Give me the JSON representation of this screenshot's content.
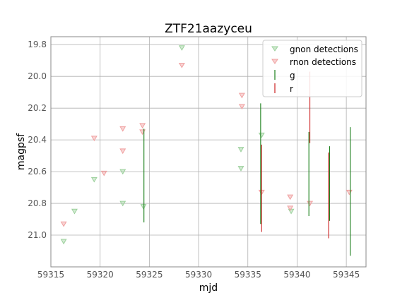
{
  "chart_data": {
    "type": "scatter",
    "title": "ZTF21aazyceu",
    "xlabel": "mjd",
    "ylabel": "magpsf",
    "xlim": [
      59315,
      59347
    ],
    "ylim": [
      21.2,
      19.75
    ],
    "y_inverted": true,
    "grid": true,
    "legend_position": "top-right",
    "xticks": [
      59315,
      59320,
      59325,
      59330,
      59335,
      59340,
      59345
    ],
    "yticks": [
      19.8,
      20.0,
      20.2,
      20.4,
      20.6,
      20.8,
      21.0
    ],
    "ytick_labels": [
      "19.8",
      "20.0",
      "20.2",
      "20.4",
      "20.6",
      "20.8",
      "21.0"
    ],
    "colors": {
      "g": "#1a7f1a",
      "r": "#cc2222",
      "gnon": "#9bd09b",
      "rnon": "#f0a0a0"
    },
    "legend": [
      "gnon detections",
      "rnon detections",
      "g",
      "r"
    ],
    "series": [
      {
        "name": "gnon detections",
        "marker": "triangle-down",
        "points": [
          {
            "x": 59316.3,
            "y": 21.04
          },
          {
            "x": 59317.4,
            "y": 20.85
          },
          {
            "x": 59319.4,
            "y": 20.65
          },
          {
            "x": 59322.3,
            "y": 20.6
          },
          {
            "x": 59322.3,
            "y": 20.8
          },
          {
            "x": 59324.4,
            "y": 20.82
          },
          {
            "x": 59328.3,
            "y": 19.82
          },
          {
            "x": 59334.3,
            "y": 20.46
          },
          {
            "x": 59334.3,
            "y": 20.58
          },
          {
            "x": 59336.4,
            "y": 20.37
          },
          {
            "x": 59339.4,
            "y": 20.85
          }
        ]
      },
      {
        "name": "rnon detections",
        "marker": "triangle-down",
        "points": [
          {
            "x": 59316.3,
            "y": 20.93
          },
          {
            "x": 59319.4,
            "y": 20.39
          },
          {
            "x": 59320.4,
            "y": 20.61
          },
          {
            "x": 59322.3,
            "y": 20.33
          },
          {
            "x": 59322.3,
            "y": 20.47
          },
          {
            "x": 59324.3,
            "y": 20.31
          },
          {
            "x": 59324.3,
            "y": 20.35
          },
          {
            "x": 59328.3,
            "y": 19.93
          },
          {
            "x": 59334.4,
            "y": 20.12
          },
          {
            "x": 59334.4,
            "y": 20.19
          },
          {
            "x": 59336.4,
            "y": 20.73
          },
          {
            "x": 59339.3,
            "y": 20.76
          },
          {
            "x": 59339.3,
            "y": 20.83
          },
          {
            "x": 59341.3,
            "y": 20.8
          },
          {
            "x": 59345.3,
            "y": 20.73
          }
        ]
      },
      {
        "name": "g",
        "marker": "errorbar",
        "points": [
          {
            "x": 59324.45,
            "ylow": 20.33,
            "yhigh": 20.92
          },
          {
            "x": 59336.3,
            "ylow": 20.17,
            "yhigh": 20.93
          },
          {
            "x": 59341.2,
            "ylow": 20.35,
            "yhigh": 20.88
          },
          {
            "x": 59343.3,
            "ylow": 20.44,
            "yhigh": 20.91
          },
          {
            "x": 59345.4,
            "ylow": 20.32,
            "yhigh": 21.13
          }
        ]
      },
      {
        "name": "r",
        "marker": "errorbar",
        "points": [
          {
            "x": 59336.4,
            "ylow": 20.43,
            "yhigh": 20.98
          },
          {
            "x": 59341.3,
            "ylow": 19.97,
            "yhigh": 20.42
          },
          {
            "x": 59343.2,
            "ylow": 20.48,
            "yhigh": 21.02
          }
        ]
      }
    ]
  }
}
